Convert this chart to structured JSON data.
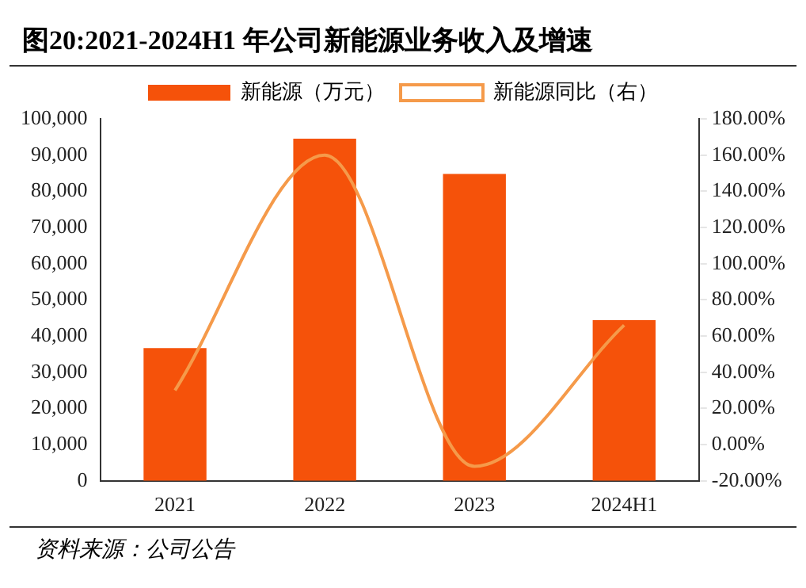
{
  "chart_data": {
    "type": "bar",
    "title": "图20:2021-2024H1 年公司新能源业务收入及增速",
    "categories": [
      "2021",
      "2022",
      "2023",
      "2024H1"
    ],
    "series": [
      {
        "name": "新能源（万元）",
        "color": "#f5520a",
        "values": [
          36700,
          94500,
          84800,
          44400
        ]
      },
      {
        "name": "新能源同比（右）",
        "type": "line",
        "axis": "y2",
        "color": "#f59a4a",
        "values": [
          30,
          160,
          -12,
          66
        ]
      }
    ],
    "ylim": [
      0,
      100000
    ],
    "yticks": [
      {
        "value": 0,
        "label": "0"
      },
      {
        "value": 10000,
        "label": "10,000"
      },
      {
        "value": 20000,
        "label": "20,000"
      },
      {
        "value": 30000,
        "label": "30,000"
      },
      {
        "value": 40000,
        "label": "40,000"
      },
      {
        "value": 50000,
        "label": "50,000"
      },
      {
        "value": 60000,
        "label": "60,000"
      },
      {
        "value": 70000,
        "label": "70,000"
      },
      {
        "value": 80000,
        "label": "80,000"
      },
      {
        "value": 90000,
        "label": "90,000"
      },
      {
        "value": 100000,
        "label": "100,000"
      }
    ],
    "y2lim": [
      -20,
      180
    ],
    "y2ticks": [
      {
        "value": -20,
        "label": "-20.00%"
      },
      {
        "value": 0,
        "label": "0.00%"
      },
      {
        "value": 20,
        "label": "20.00%"
      },
      {
        "value": 40,
        "label": "40.00%"
      },
      {
        "value": 60,
        "label": "60.00%"
      },
      {
        "value": 80,
        "label": "80.00%"
      },
      {
        "value": 100,
        "label": "100.00%"
      },
      {
        "value": 120,
        "label": "120.00%"
      },
      {
        "value": 140,
        "label": "140.00%"
      },
      {
        "value": 160,
        "label": "160.00%"
      },
      {
        "value": 180,
        "label": "180.00%"
      }
    ],
    "legend": "top",
    "grid": false,
    "marker": "none",
    "line_style": "solid",
    "annotations": [
      "资料来源：公司公告"
    ]
  }
}
